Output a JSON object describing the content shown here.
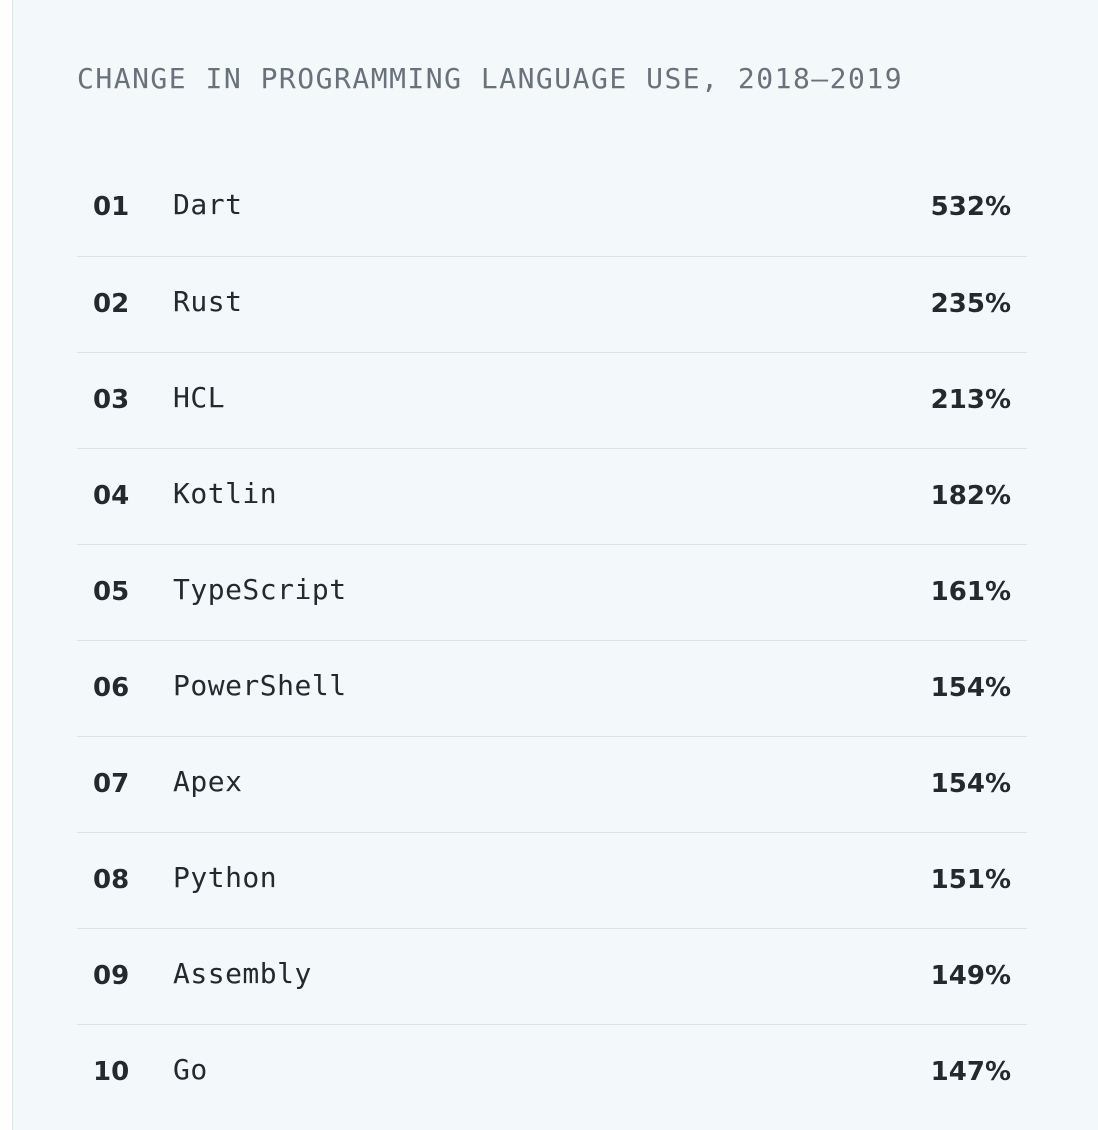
{
  "chart_data": {
    "type": "table",
    "title": "CHANGE IN PROGRAMMING LANGUAGE USE, 2018–2019",
    "rows": [
      {
        "rank": "01",
        "language": "Dart",
        "change": "532%"
      },
      {
        "rank": "02",
        "language": "Rust",
        "change": "235%"
      },
      {
        "rank": "03",
        "language": "HCL",
        "change": "213%"
      },
      {
        "rank": "04",
        "language": "Kotlin",
        "change": "182%"
      },
      {
        "rank": "05",
        "language": "TypeScript",
        "change": "161%"
      },
      {
        "rank": "06",
        "language": "PowerShell",
        "change": "154%"
      },
      {
        "rank": "07",
        "language": "Apex",
        "change": "154%"
      },
      {
        "rank": "08",
        "language": "Python",
        "change": "151%"
      },
      {
        "rank": "09",
        "language": "Assembly",
        "change": "149%"
      },
      {
        "rank": "10",
        "language": "Go",
        "change": "147%"
      }
    ]
  }
}
